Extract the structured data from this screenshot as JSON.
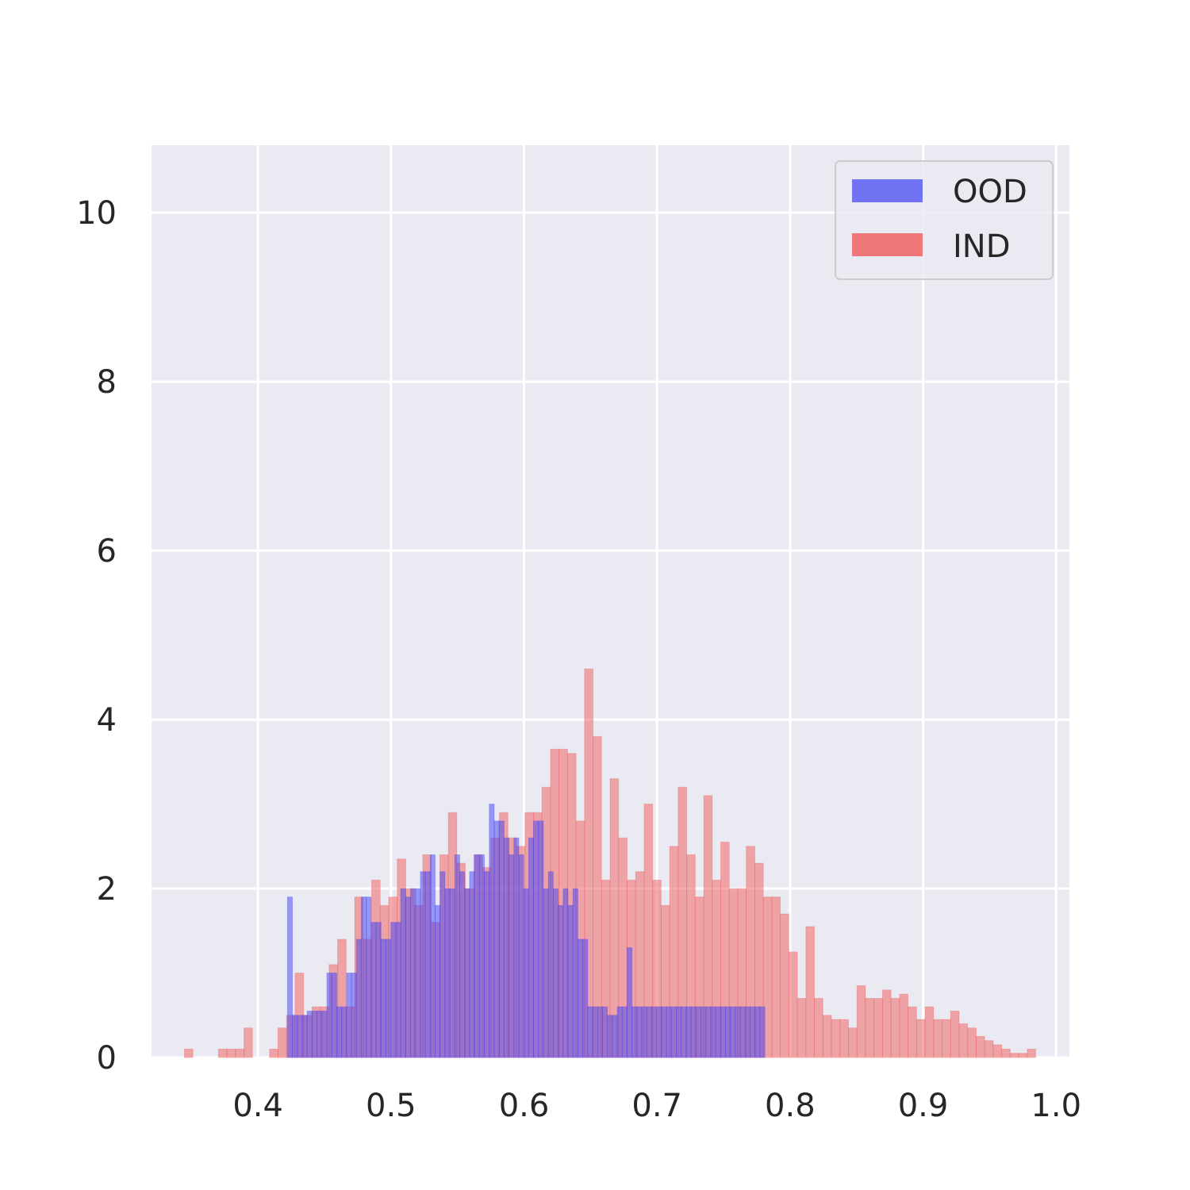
{
  "chart_data": {
    "type": "bar",
    "subtype": "histogram",
    "title": "",
    "xlabel": "",
    "ylabel": "",
    "xlim": [
      0.32,
      1.01
    ],
    "ylim": [
      0,
      10.8
    ],
    "xticks": [
      0.4,
      0.5,
      0.6,
      0.7,
      0.8,
      0.9,
      1.0
    ],
    "xtick_labels": [
      "0.4",
      "0.5",
      "0.6",
      "0.7",
      "0.8",
      "0.9",
      "1.0"
    ],
    "yticks": [
      0,
      2,
      4,
      6,
      8,
      10
    ],
    "ytick_labels": [
      "0",
      "2",
      "4",
      "6",
      "8",
      "10"
    ],
    "grid": true,
    "legend_position": "top-right",
    "series": [
      {
        "name": "IND",
        "color": "#f0595a",
        "opacity": 0.5,
        "bin_edges": [
          0.3447,
          0.3511,
          0.3575,
          0.3639,
          0.3703,
          0.3767,
          0.3831,
          0.3895,
          0.3959,
          0.4023,
          0.4087,
          0.4151,
          0.4215,
          0.4279,
          0.4343,
          0.4407,
          0.4471,
          0.4535,
          0.4599,
          0.4663,
          0.4727,
          0.4791,
          0.4855,
          0.4919,
          0.4983,
          0.5047,
          0.5111,
          0.5175,
          0.5239,
          0.5303,
          0.5367,
          0.5431,
          0.5495,
          0.5559,
          0.5623,
          0.5687,
          0.5751,
          0.5815,
          0.5879,
          0.5943,
          0.6007,
          0.6071,
          0.6135,
          0.6199,
          0.6263,
          0.6327,
          0.6391,
          0.6455,
          0.6519,
          0.6583,
          0.6647,
          0.6711,
          0.6775,
          0.6839,
          0.6903,
          0.6967,
          0.7031,
          0.7095,
          0.7159,
          0.7223,
          0.7287,
          0.7351,
          0.7415,
          0.7479,
          0.7543,
          0.7607,
          0.7671,
          0.7735,
          0.7799,
          0.7863,
          0.7927,
          0.7991,
          0.8055,
          0.8119,
          0.8183,
          0.8247,
          0.8311,
          0.8375,
          0.8439,
          0.8503,
          0.8567,
          0.8631,
          0.8695,
          0.8759,
          0.8823,
          0.8887,
          0.8951,
          0.9015,
          0.9079,
          0.9143,
          0.9207,
          0.9271,
          0.9335,
          0.9399,
          0.9463,
          0.9527,
          0.9591,
          0.9655,
          0.9719,
          0.9783,
          0.9847
        ],
        "values": [
          0.1,
          0,
          0,
          0,
          0.1,
          0.1,
          0.1,
          0.35,
          0,
          0,
          0.1,
          0.35,
          0.5,
          1.0,
          0.5,
          0.6,
          0.6,
          1.1,
          1.4,
          0.6,
          1.9,
          1.4,
          2.1,
          1.8,
          1.9,
          2.35,
          2.0,
          1.8,
          2.4,
          1.6,
          2.4,
          2.9,
          2.3,
          2.0,
          2.4,
          2.25,
          2.6,
          2.9,
          2.6,
          2.5,
          2.9,
          2.9,
          3.2,
          3.65,
          3.65,
          3.6,
          2.8,
          4.6,
          3.8,
          2.1,
          3.3,
          2.6,
          2.1,
          2.2,
          3.0,
          2.1,
          1.8,
          2.5,
          3.2,
          2.4,
          1.9,
          3.1,
          2.1,
          2.55,
          2.0,
          2.0,
          2.5,
          2.3,
          1.9,
          1.9,
          1.7,
          1.25,
          0.7,
          1.55,
          0.7,
          0.5,
          0.45,
          0.45,
          0.35,
          0.85,
          0.7,
          0.7,
          0.8,
          0.7,
          0.75,
          0.6,
          0.45,
          0.6,
          0.45,
          0.45,
          0.55,
          0.4,
          0.35,
          0.25,
          0.2,
          0.15,
          0.1,
          0.05,
          0.05,
          0.1
        ]
      },
      {
        "name": "OOD",
        "color": "#3f3ff5",
        "opacity": 0.5,
        "bin_edges": [
          0.4222,
          0.4259,
          0.4296,
          0.4333,
          0.437,
          0.4407,
          0.4444,
          0.4481,
          0.4518,
          0.4555,
          0.4592,
          0.4629,
          0.4666,
          0.4703,
          0.474,
          0.4777,
          0.4814,
          0.4851,
          0.4888,
          0.4925,
          0.4962,
          0.4999,
          0.5036,
          0.5073,
          0.511,
          0.5147,
          0.5184,
          0.5221,
          0.5258,
          0.5295,
          0.5332,
          0.5369,
          0.5406,
          0.5443,
          0.548,
          0.5517,
          0.5554,
          0.5591,
          0.5628,
          0.5665,
          0.5702,
          0.5739,
          0.5776,
          0.5813,
          0.585,
          0.5887,
          0.5924,
          0.5961,
          0.5998,
          0.6035,
          0.6072,
          0.6109,
          0.6146,
          0.6183,
          0.622,
          0.6257,
          0.6294,
          0.6331,
          0.6368,
          0.6405,
          0.6442,
          0.6479,
          0.6516,
          0.6553,
          0.659,
          0.6627,
          0.6664,
          0.6701,
          0.6738,
          0.6775,
          0.6812,
          0.6849,
          0.6886,
          0.6923,
          0.696,
          0.6997,
          0.7034,
          0.7071,
          0.7108,
          0.7145,
          0.7182,
          0.7219,
          0.7256,
          0.7293,
          0.733,
          0.7367,
          0.7404,
          0.7441,
          0.7478,
          0.7515,
          0.7552,
          0.7589,
          0.7626,
          0.7663,
          0.77,
          0.7737,
          0.7774,
          0.7811
        ],
        "values": [
          1.9,
          0.5,
          0.5,
          0.5,
          0.55,
          0.55,
          0.55,
          0.55,
          1.0,
          1.0,
          0.6,
          0.6,
          1.0,
          1.0,
          1.4,
          1.9,
          1.9,
          1.6,
          1.6,
          1.4,
          1.4,
          1.6,
          1.6,
          2.0,
          1.9,
          2.0,
          2.0,
          2.2,
          2.2,
          2.4,
          1.8,
          2.2,
          2.0,
          2.0,
          2.4,
          2.2,
          2.0,
          2.2,
          2.4,
          2.4,
          2.2,
          3.0,
          2.8,
          2.8,
          2.6,
          2.4,
          2.6,
          2.4,
          2.0,
          2.6,
          2.8,
          2.8,
          2.0,
          2.2,
          2.0,
          1.8,
          2.0,
          1.8,
          2.0,
          1.4,
          1.4,
          0.6,
          0.6,
          0.6,
          0.6,
          0.5,
          0.5,
          0.6,
          0.6,
          1.3,
          0.6,
          0.6,
          0.6,
          0.6,
          0.6,
          0.6,
          0.6,
          0.6,
          0.6,
          0.6,
          0.6,
          0.6,
          0.6,
          0.6,
          0.6,
          0.6,
          0.6,
          0.6,
          0.6,
          0.6,
          0.6,
          0.6,
          0.6,
          0.6,
          0.6,
          0.6,
          0.6
        ]
      }
    ]
  }
}
